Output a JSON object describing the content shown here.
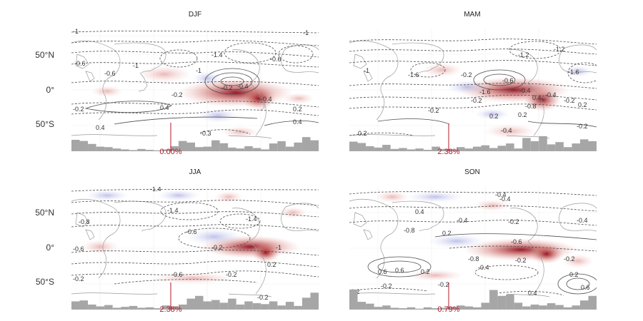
{
  "panels": [
    {
      "title": "DJF",
      "percent_label": "0.00%",
      "lat_ticks": [
        "50°N",
        "0°",
        "50°S"
      ],
      "contour_labels": [
        "-1",
        "-1",
        "-0.6",
        "-0.6",
        "-0.6",
        "-1.4",
        "-1",
        "-0.2",
        "-0.4",
        "-0.2",
        "0.4",
        "-0.2",
        "0.4",
        "-0.4",
        "0.2",
        "-0.3",
        "0.4",
        "-1"
      ],
      "histogram": [
        0.5,
        0.45,
        0.32,
        0.2,
        0.18,
        0.12,
        0.08,
        0.05,
        0.1,
        0.06,
        0.04,
        0.08,
        0.22,
        0.45,
        0.38,
        0.18,
        0.2,
        0.48,
        0.35,
        0.16,
        0.12,
        0.22,
        0.14,
        0.08,
        0.34,
        0.44,
        0.2,
        0.38,
        0.62,
        0.48
      ]
    },
    {
      "title": "MAM",
      "percent_label": "2.38%",
      "lat_ticks": [
        "50°N",
        "0°",
        "50°S"
      ],
      "contour_labels": [
        "-1.2",
        "-1.2",
        "-1",
        "-1.6",
        "-1.6",
        "-0.2",
        "-0.6",
        "-0.4",
        "-1.6",
        "-0.4",
        "-0.2",
        "-0.2",
        "0.2",
        "0.2",
        "-0.8",
        "0.4",
        "-0.2",
        "0.2",
        "-0.4",
        "0.2",
        "-0.2"
      ],
      "histogram": [
        0.42,
        0.36,
        0.22,
        0.16,
        0.28,
        0.1,
        0.14,
        0.08,
        0.12,
        0.06,
        0.2,
        0.1,
        0.08,
        0.18,
        0.12,
        0.2,
        0.26,
        0.14,
        0.24,
        0.34,
        0.12,
        0.58,
        0.44,
        0.66,
        0.3,
        0.4,
        0.18,
        0.34,
        0.52,
        0.44
      ]
    },
    {
      "title": "JJA",
      "percent_label": "2.38%",
      "lat_ticks": [
        "50°N",
        "0°",
        "50°S"
      ],
      "contour_labels": [
        "-1.4",
        "-1.4",
        "-0.8",
        "-0.6",
        "-1.4",
        "-1",
        "-0.6",
        "-0.2",
        "-0.6",
        "-0.2",
        "0.2",
        "-0.2",
        "-0.2"
      ],
      "histogram": [
        0.36,
        0.4,
        0.22,
        0.14,
        0.2,
        0.08,
        0.12,
        0.16,
        0.08,
        0.1,
        0.06,
        0.18,
        0.14,
        0.22,
        0.48,
        0.6,
        0.36,
        0.42,
        0.3,
        0.48,
        0.22,
        0.36,
        0.28,
        0.24,
        0.36,
        0.18,
        0.34,
        0.16,
        0.52,
        0.74
      ]
    },
    {
      "title": "SON",
      "percent_label": "0.79%",
      "lat_ticks": [
        "50°N",
        "0°",
        "50°S"
      ],
      "contour_labels": [
        "-0.4",
        "0.4",
        "-0.8",
        "-0.4",
        "-0.2",
        "0.2",
        "-0.6",
        "-0.8",
        "-0.4",
        "-0.2",
        "0.6",
        "0.2",
        "-0.2",
        "0.6",
        "-0.4",
        "-0.2",
        "0.2",
        "0.2",
        "0.4",
        "-0.4",
        "0.6",
        "-0.2"
      ],
      "histogram": [
        0.88,
        0.34,
        0.26,
        0.12,
        0.18,
        0.08,
        0.06,
        0.1,
        0.04,
        0.1,
        0.06,
        0.08,
        0.12,
        0.18,
        0.14,
        0.1,
        0.3,
        0.86,
        0.6,
        0.66,
        0.3,
        0.14,
        0.22,
        0.18,
        0.28,
        0.2,
        0.1,
        0.18,
        0.4,
        0.6
      ]
    }
  ],
  "colors": {
    "positive_anomaly": "#b2182b",
    "negative_anomaly": "#6a6fc0",
    "marker": "#b2182b",
    "histogram": "#a6a6a6",
    "contour": "#4d4d4d",
    "coastline": "#9a9a9a"
  }
}
